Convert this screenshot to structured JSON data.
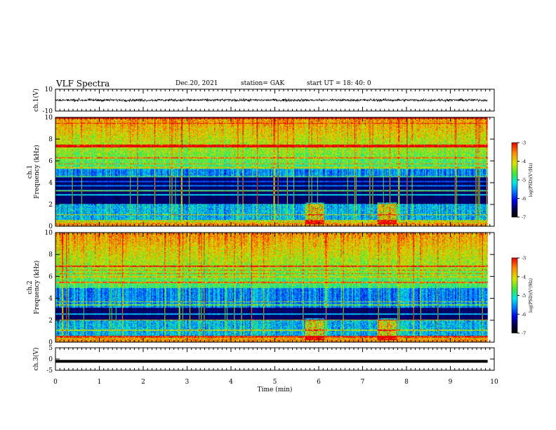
{
  "header": {
    "title": "VLF Spectra",
    "date": "Dec.20, 2021",
    "station": "station= GAK",
    "start": "start  UT =   18: 40: 0"
  },
  "chart_data": [
    {
      "type": "line",
      "panel": "ch1-waveform",
      "ylabel": "ch.1(V)",
      "ylim": [
        -10,
        10
      ],
      "yticks": [
        "10",
        "-10"
      ],
      "x_unit": "min",
      "xlim": [
        0,
        10
      ],
      "signal_mean": 0,
      "signal_spread": [
        -2,
        2
      ],
      "data_end": 9.85
    },
    {
      "type": "heatmap",
      "panel": "ch1-spectrogram",
      "ylabel": "ch.1\nFrequency (kHz)",
      "ylim": [
        0,
        10
      ],
      "yticks": [
        "0",
        "2",
        "4",
        "6",
        "8",
        "10"
      ],
      "xlim": [
        0,
        10
      ],
      "colorbar": {
        "label": "log(PSD)(V²/Hz)",
        "range": [
          -7,
          -3
        ],
        "ticks": [
          "-3",
          "-4",
          "-5",
          "-6",
          "-7"
        ]
      },
      "bands_khz": {
        "quiet_low": 0.6,
        "quiet_high": 4.6,
        "noisy_start": 5.3
      },
      "bursts_min": [
        5.9,
        7.55
      ]
    },
    {
      "type": "heatmap",
      "panel": "ch2-spectrogram",
      "ylabel": "ch.2\nFrequency (kHz)",
      "ylim": [
        0,
        10
      ],
      "yticks": [
        "0",
        "2",
        "4",
        "6",
        "8",
        "10"
      ],
      "xlim": [
        0,
        10
      ],
      "colorbar": {
        "label": "log(PSD)(V²/Hz)",
        "range": [
          -7,
          -3
        ],
        "ticks": [
          "-3",
          "-4",
          "-5",
          "-6",
          "-7"
        ]
      },
      "bands_khz": {
        "quiet_low": 0.6,
        "quiet_high": 3.2,
        "noisy_start": 5.0
      },
      "bursts_min": [
        5.9,
        7.55
      ]
    },
    {
      "type": "line",
      "panel": "ch3-waveform",
      "ylabel": "ch.3(V)",
      "ylim": [
        -5,
        5
      ],
      "yticks": [
        "5",
        "0",
        "-5"
      ],
      "xlim": [
        0,
        10
      ],
      "level": -1,
      "data_end": 9.85
    }
  ],
  "xaxis": {
    "label": "Time  (min)",
    "ticks": [
      "0",
      "1",
      "2",
      "3",
      "4",
      "5",
      "6",
      "7",
      "8",
      "9",
      "10"
    ]
  }
}
